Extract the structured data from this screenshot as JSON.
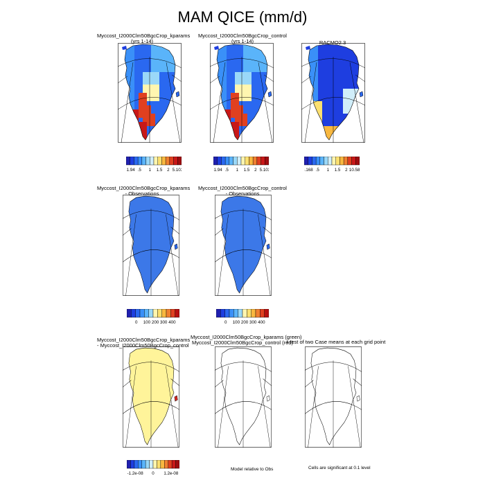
{
  "title": "MAM QICE (mm/d)",
  "panels": [
    {
      "id": "p1",
      "title": [
        "Myccost_I2000Clm50BgcCrop_kparams",
        "(yrs 1-14)"
      ],
      "fill": "case"
    },
    {
      "id": "p2",
      "title": [
        "Myccost_I2000Clm50BgcCrop_control",
        "(yrs 1-14)"
      ],
      "fill": "case"
    },
    {
      "id": "p3",
      "title": [
        "RACMO2.3",
        ""
      ],
      "fill": "racmo"
    },
    {
      "id": "p4",
      "title": [
        "Myccost_I2000Clm50BgcCrop_kparams",
        "- Observations"
      ],
      "fill": "bias"
    },
    {
      "id": "p5",
      "title": [
        "Myccost_I2000Clm50BgcCrop_control",
        "- Observations"
      ],
      "fill": "bias"
    },
    {
      "id": "p6",
      "title": [
        "Myccost_I2000Clm50BgcCrop_kparams",
        "- Myccost_I2000Clm50BgcCrop_control"
      ],
      "fill": "diff"
    },
    {
      "id": "p7",
      "title": [
        "Myccost_I2000Clm50BgcCrop_kparams (green)",
        "Myccost_I2000Clm50BgcCrop_control (red)"
      ],
      "fill": "none"
    },
    {
      "id": "p8",
      "title": [
        "t-test of two Case means at each grid point",
        ""
      ],
      "fill": "none"
    }
  ],
  "colorbars": [
    {
      "id": "cb1",
      "labels": [
        "-1.94",
        ".5",
        "1",
        "1.5",
        "2",
        "5.103"
      ]
    },
    {
      "id": "cb2",
      "labels": [
        "-1.94",
        ".5",
        "1",
        "1.5",
        "2",
        "5.103"
      ]
    },
    {
      "id": "cb3",
      "labels": [
        "-.168",
        ".5",
        "1",
        "1.5",
        "2",
        "10.589"
      ]
    },
    {
      "id": "cb4",
      "labels": [
        "0",
        "100",
        "200",
        "300",
        "400"
      ]
    },
    {
      "id": "cb5",
      "labels": [
        "0",
        "100",
        "200",
        "300",
        "400"
      ]
    },
    {
      "id": "cb6",
      "labels": [
        "-1.2e-08",
        "0",
        "1.2e-08"
      ]
    }
  ],
  "footnotes": {
    "model_relative": "Model relative to Obs",
    "significance": "Cells are significant at 0.1 level"
  },
  "colors": {
    "scale_14": [
      "#2020b0",
      "#1e3ee0",
      "#2a68f0",
      "#3a90f8",
      "#5ab4fa",
      "#9ad8f8",
      "#d0eefa",
      "#fff6b0",
      "#fce070",
      "#f8b840",
      "#f08030",
      "#e04020",
      "#c81818",
      "#a00c10"
    ],
    "scale_12": [
      "#2020b0",
      "#1e3ee0",
      "#2a68f0",
      "#3a90f8",
      "#5ab4fa",
      "#9ad8f8",
      "#fff6b0",
      "#fce070",
      "#f8b840",
      "#f08030",
      "#e04020",
      "#b81010"
    ],
    "bias_blue": "#3c78e8",
    "diff_yellow": "#fff49a",
    "red": "#d82820"
  },
  "chart_data": [
    {
      "type": "heatmap",
      "title": "Myccost_I2000Clm50BgcCrop_kparams (yrs 1-14)",
      "colorbar_ticks": [
        -1.94,
        0.5,
        1,
        1.5,
        2,
        5.103
      ]
    },
    {
      "type": "heatmap",
      "title": "Myccost_I2000Clm50BgcCrop_control (yrs 1-14)",
      "colorbar_ticks": [
        -1.94,
        0.5,
        1,
        1.5,
        2,
        5.103
      ]
    },
    {
      "type": "heatmap",
      "title": "RACMO2.3",
      "colorbar_ticks": [
        -0.168,
        0.5,
        1,
        1.5,
        2,
        10.589
      ]
    },
    {
      "type": "heatmap",
      "title": "Myccost_I2000Clm50BgcCrop_kparams - Observations",
      "colorbar_ticks": [
        0,
        100,
        200,
        300,
        400
      ]
    },
    {
      "type": "heatmap",
      "title": "Myccost_I2000Clm50BgcCrop_control - Observations",
      "colorbar_ticks": [
        0,
        100,
        200,
        300,
        400
      ]
    },
    {
      "type": "heatmap",
      "title": "Myccost_I2000Clm50BgcCrop_kparams - Myccost_I2000Clm50BgcCrop_control",
      "colorbar_ticks": [
        -1.2e-08,
        0,
        1.2e-08
      ]
    },
    {
      "type": "heatmap",
      "title": "Myccost_I2000Clm50BgcCrop_kparams (green) Myccost_I2000Clm50BgcCrop_control (red)"
    },
    {
      "type": "heatmap",
      "title": "t-test of two Case means at each grid point"
    }
  ]
}
